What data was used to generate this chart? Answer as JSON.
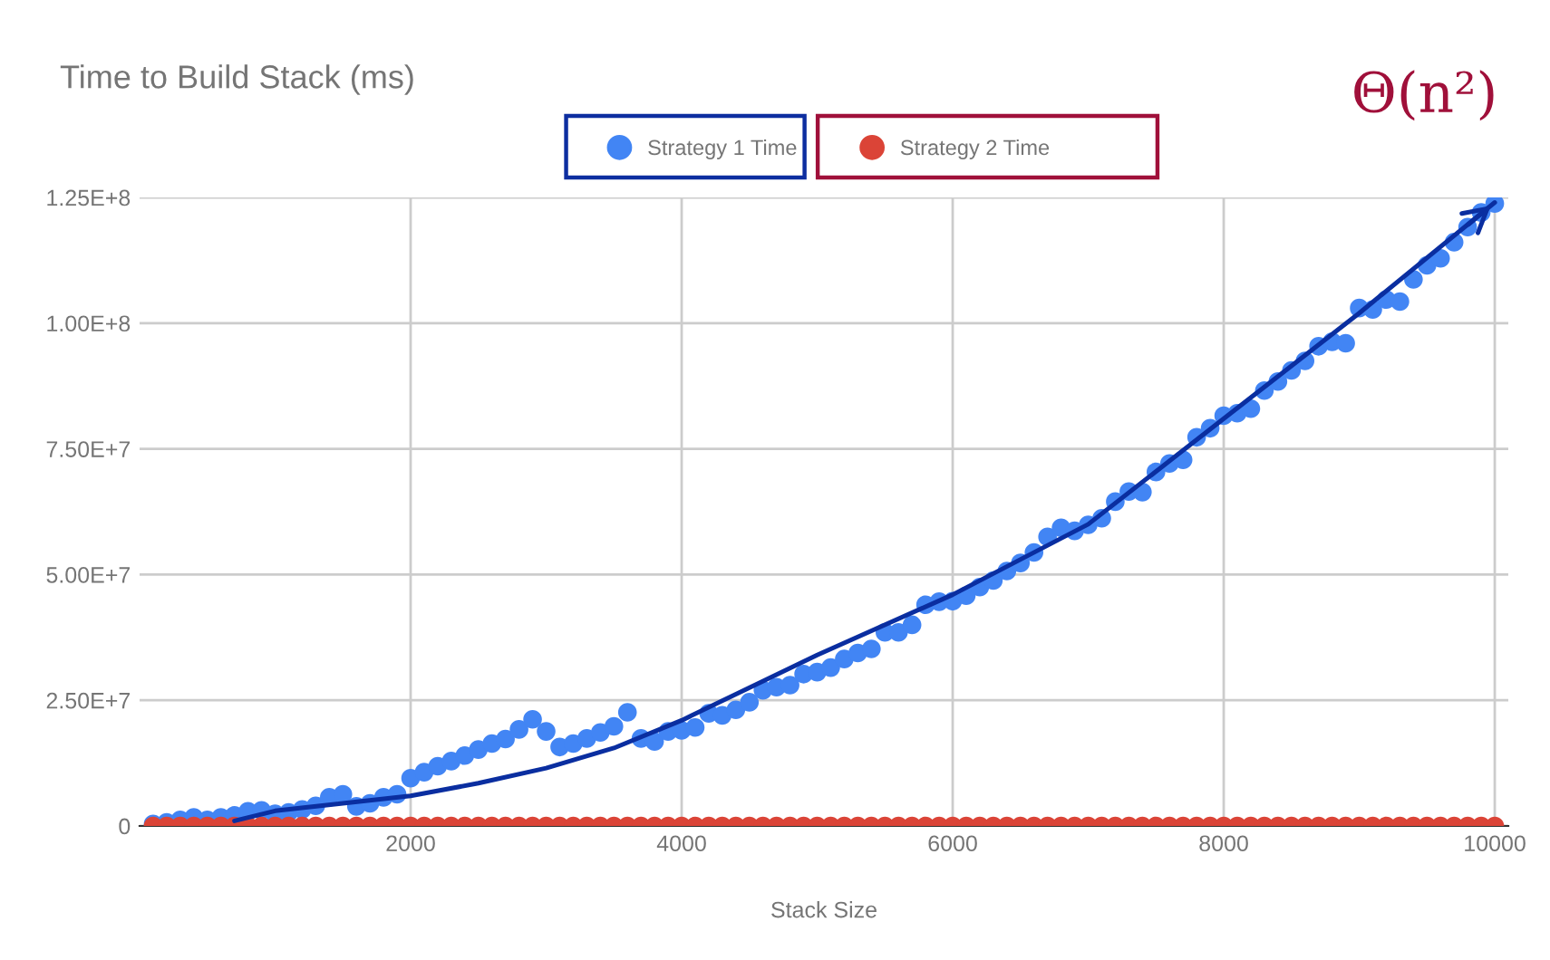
{
  "chart_data": {
    "type": "scatter",
    "title": "Time to Build Stack (ms)",
    "xlabel": "Stack Size",
    "annotations": [
      {
        "text": "Θ(n²)",
        "x": 10000,
        "y": 124000000
      }
    ],
    "x": [
      100,
      200,
      300,
      400,
      500,
      600,
      700,
      800,
      900,
      1000,
      1100,
      1200,
      1300,
      1400,
      1500,
      1600,
      1700,
      1800,
      1900,
      2000,
      2100,
      2200,
      2300,
      2400,
      2500,
      2600,
      2700,
      2800,
      2900,
      3000,
      3100,
      3200,
      3300,
      3400,
      3500,
      3600,
      3700,
      3800,
      3900,
      4000,
      4100,
      4200,
      4300,
      4400,
      4500,
      4600,
      4700,
      4800,
      4900,
      5000,
      5100,
      5200,
      5300,
      5400,
      5500,
      5600,
      5700,
      5800,
      5900,
      6000,
      6100,
      6200,
      6300,
      6400,
      6500,
      6600,
      6700,
      6800,
      6900,
      7000,
      7100,
      7200,
      7300,
      7400,
      7500,
      7600,
      7700,
      7800,
      7900,
      8000,
      8100,
      8200,
      8300,
      8400,
      8500,
      8600,
      8700,
      8800,
      8900,
      9000,
      9100,
      9200,
      9300,
      9400,
      9500,
      9600,
      9700,
      9800,
      9900,
      10000
    ],
    "series": [
      {
        "name": "Strategy 1 Time",
        "color": "#4285f4",
        "values": [
          400000.0,
          700000.0,
          1200000.0,
          1700000.0,
          1200000.0,
          1700000.0,
          2100000.0,
          2900000.0,
          3100000.0,
          2400000.0,
          2700000.0,
          3300000.0,
          4000000.0,
          5700000.0,
          6300000.0,
          3900000.0,
          4500000.0,
          5700000.0,
          6300000.0,
          9500000.0,
          10700000.0,
          11900000.0,
          12900000.0,
          14000000.0,
          15200000.0,
          16400000.0,
          17300000.0,
          19200000.0,
          21200000.0,
          18800000.0,
          15700000.0,
          16400000.0,
          17400000.0,
          18600000.0,
          19800000.0,
          22600000.0,
          17400000.0,
          16800000.0,
          18800000.0,
          19000000.0,
          19600000.0,
          22400000.0,
          22000000.0,
          23100000.0,
          24600000.0,
          27000000.0,
          27600000.0,
          28000000.0,
          30200000.0,
          30600000.0,
          31500000.0,
          33200000.0,
          34400000.0,
          35200000.0,
          38500000.0,
          38500000.0,
          40000000.0,
          44000000.0,
          44600000.0,
          44700000.0,
          45800000.0,
          47500000.0,
          48800000.0,
          50700000.0,
          52300000.0,
          54400000.0,
          57500000.0,
          59300000.0,
          58700000.0,
          59900000.0,
          61200000.0,
          64500000.0,
          66500000.0,
          66400000.0,
          70400000.0,
          72100000.0,
          72800000.0,
          77300000.0,
          79100000.0,
          81600000.0,
          82100000.0,
          83000000.0,
          86600000.0,
          88400000.0,
          90600000.0,
          92500000.0,
          95400000.0,
          96300000.0,
          96000000.0,
          103000000.0,
          102700000.0,
          104700000.0,
          104300000.0,
          108700000.0,
          111500000.0,
          112900000.0,
          116100000.0,
          119100000.0,
          122000000.0,
          123800000.0
        ]
      },
      {
        "name": "Strategy 2 Time",
        "color": "#db4437",
        "values": [
          0,
          0,
          0,
          0,
          0,
          0,
          0,
          0,
          0,
          0,
          0,
          0,
          0,
          0,
          0,
          0,
          0,
          0,
          0,
          0,
          0,
          0,
          0,
          0,
          0,
          0,
          0,
          0,
          0,
          0,
          0,
          0,
          0,
          0,
          0,
          0,
          0,
          0,
          0,
          0,
          0,
          0,
          0,
          0,
          0,
          0,
          0,
          0,
          0,
          0,
          0,
          0,
          0,
          0,
          0,
          0,
          0,
          0,
          0,
          0,
          0,
          0,
          0,
          0,
          0,
          0,
          0,
          0,
          0,
          0,
          0,
          0,
          0,
          0,
          0,
          0,
          0,
          0,
          0,
          0,
          0,
          0,
          0,
          0,
          0,
          0,
          0,
          0,
          0,
          0,
          0,
          0,
          0,
          0,
          0,
          0,
          0,
          0,
          0,
          0
        ]
      },
      {
        "type": "line",
        "marker": "none",
        "color": "#0a2ea0",
        "x": [
          700,
          1000,
          1500,
          2000,
          2500,
          3000,
          3500,
          4000,
          5000,
          6000,
          7000,
          8000,
          9000,
          10000
        ],
        "values": [
          1000000.0,
          3000000.0,
          4500000.0,
          6000000.0,
          8500000.0,
          11500000.0,
          15500000.0,
          21000000.0,
          34000000.0,
          46000000.0,
          60000000.0,
          81000000.0,
          102000000.0,
          124000000.0
        ]
      }
    ],
    "xlim": [
      0,
      10100
    ],
    "xticks": [
      2000,
      4000,
      6000,
      8000,
      10000
    ],
    "ylim": [
      0,
      125000000
    ],
    "yticks": [
      0,
      {
        "value": 25000000,
        "label": "2.50E+7"
      },
      {
        "value": 50000000,
        "label": "5.00E+7"
      },
      {
        "value": 75000000,
        "label": "7.50E+7"
      },
      {
        "value": 100000000,
        "label": "1.00E+8"
      },
      {
        "value": 125000000,
        "label": "1.25E+8"
      }
    ],
    "grid": true,
    "legend": "top",
    "marker": "circle"
  }
}
